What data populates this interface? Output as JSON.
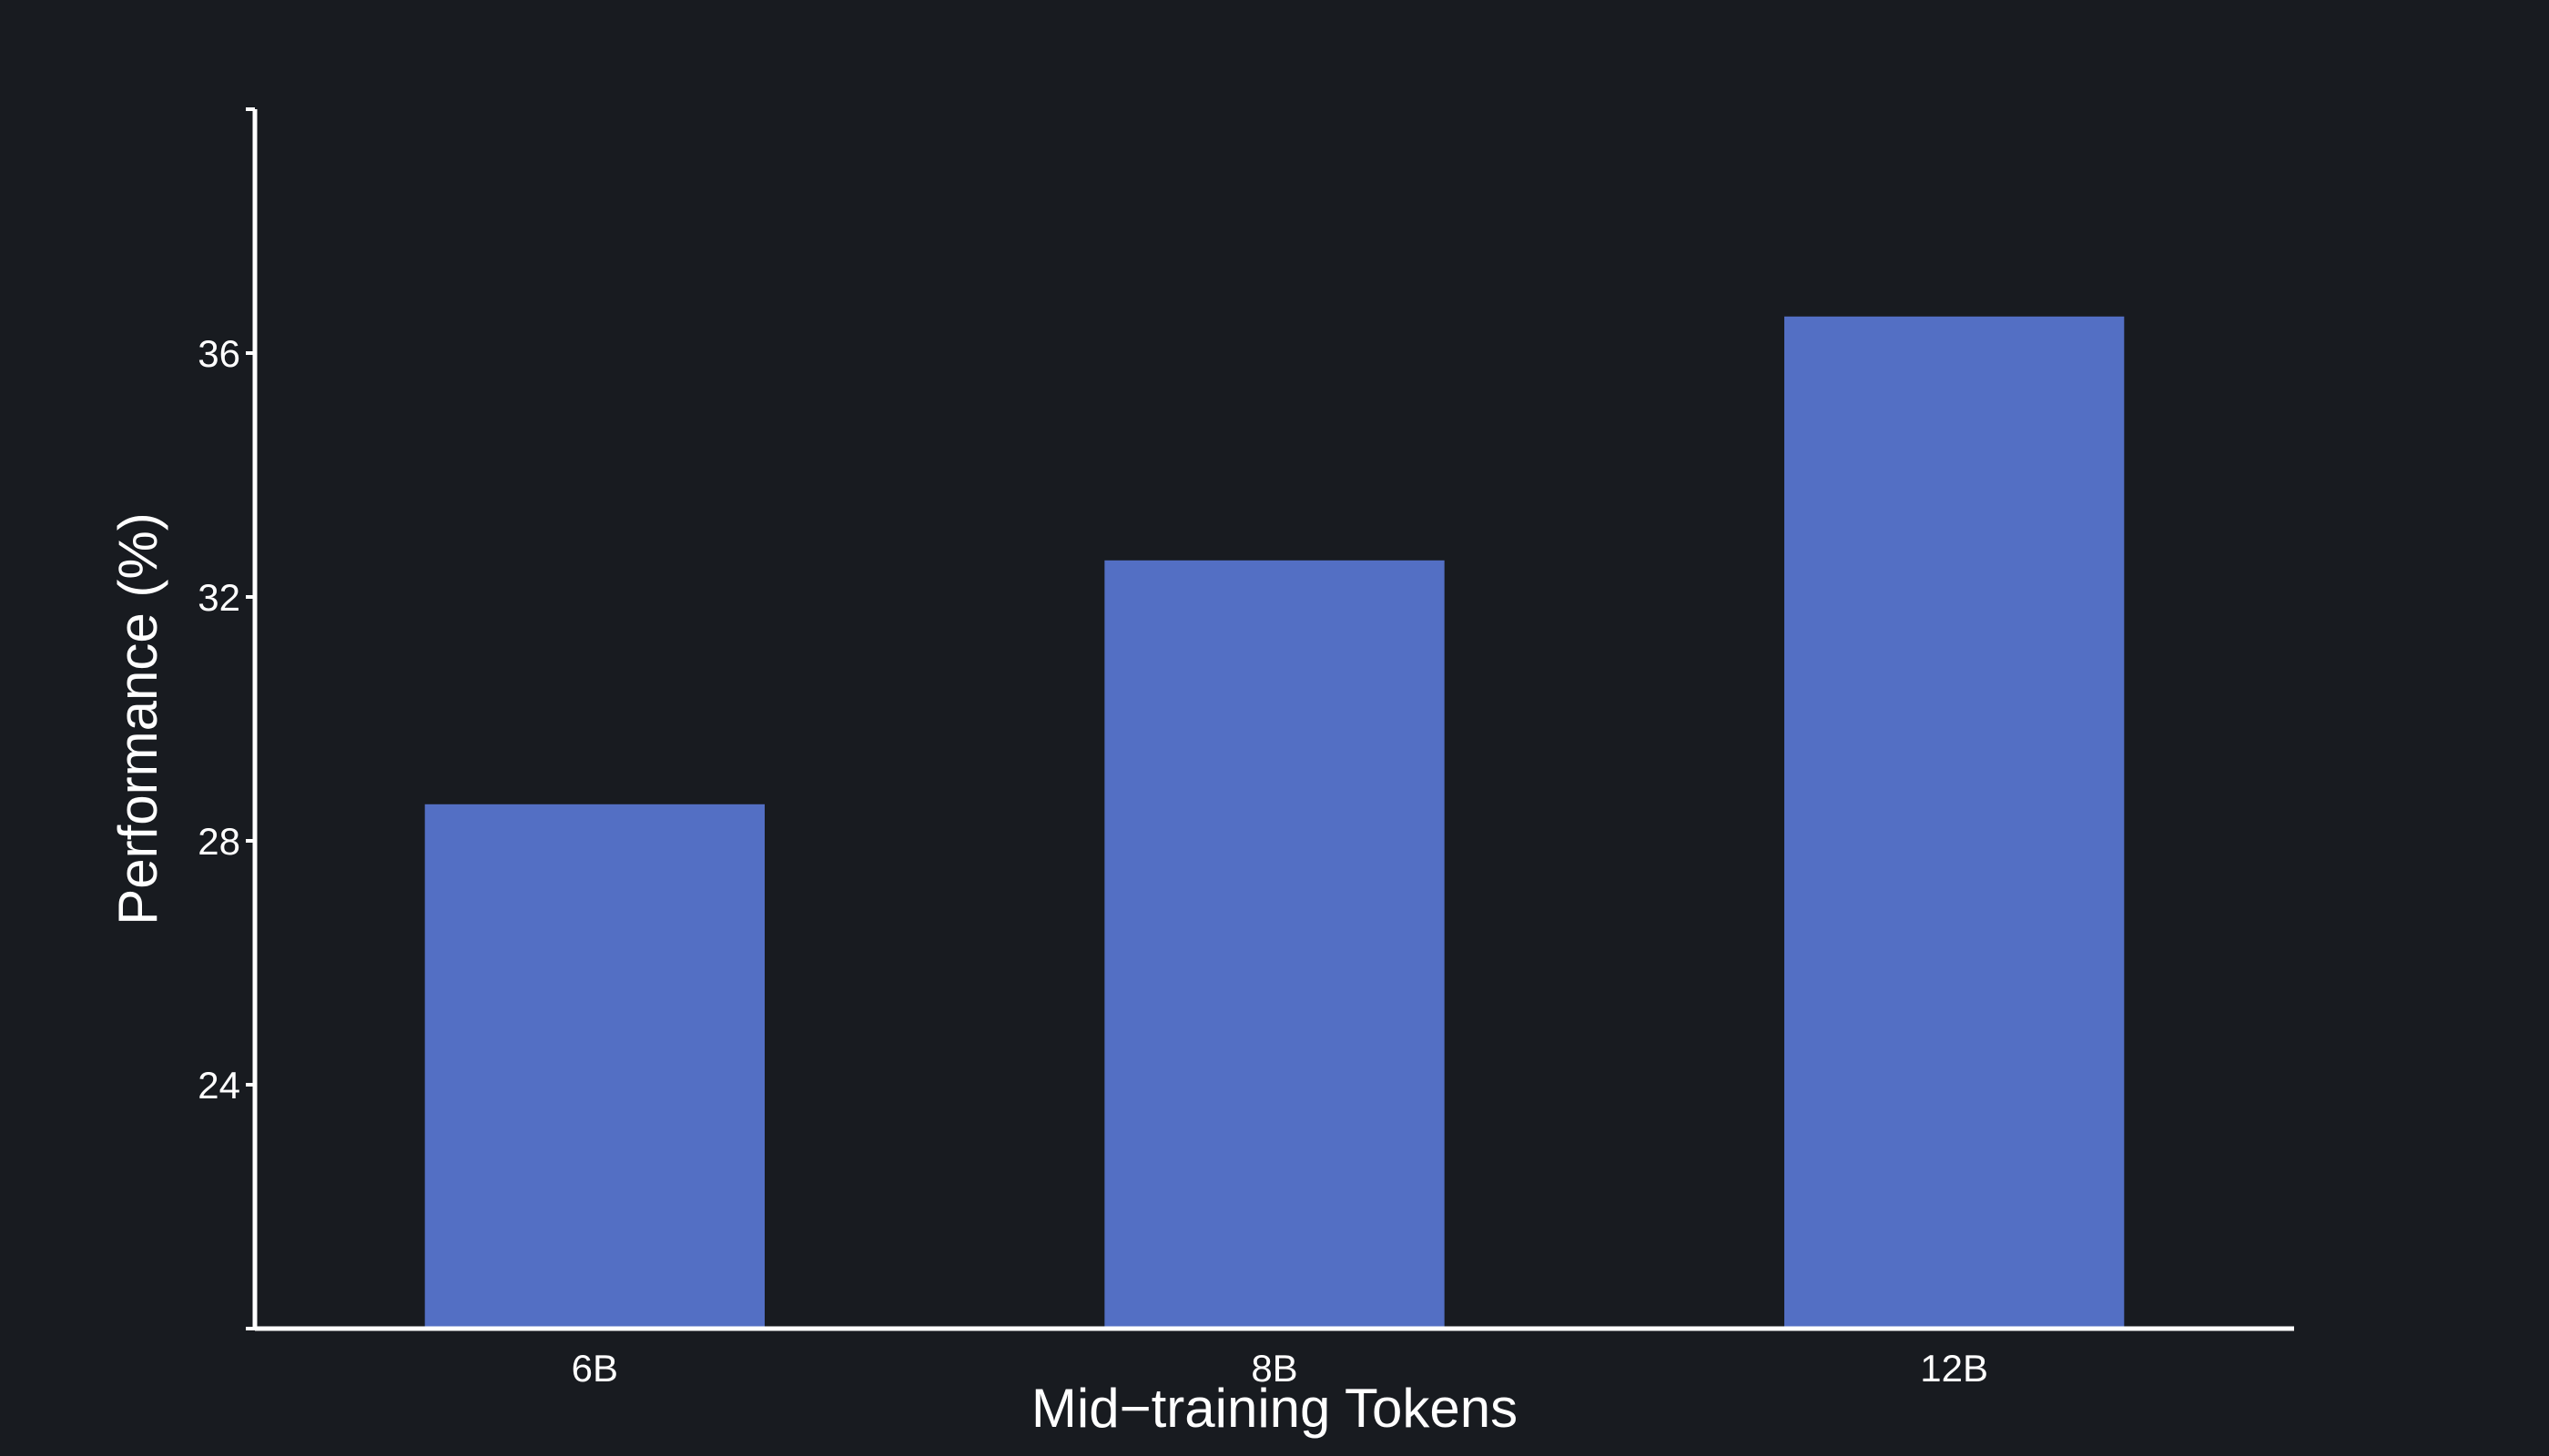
{
  "chart_data": {
    "type": "bar",
    "categories": [
      "6B",
      "8B",
      "12B"
    ],
    "values": [
      28.6,
      32.6,
      36.6
    ],
    "xlabel": "Mid−training Tokens",
    "ylabel": "Performance (%)",
    "ylim": [
      20,
      40
    ],
    "yticks": [
      24,
      28,
      32,
      36
    ],
    "yticklabels": [
      "24",
      "28",
      "32",
      "36"
    ],
    "grid": false,
    "bar_color": "#536fc4",
    "background_color": "#181b20",
    "axis_color": "#ffffff"
  }
}
